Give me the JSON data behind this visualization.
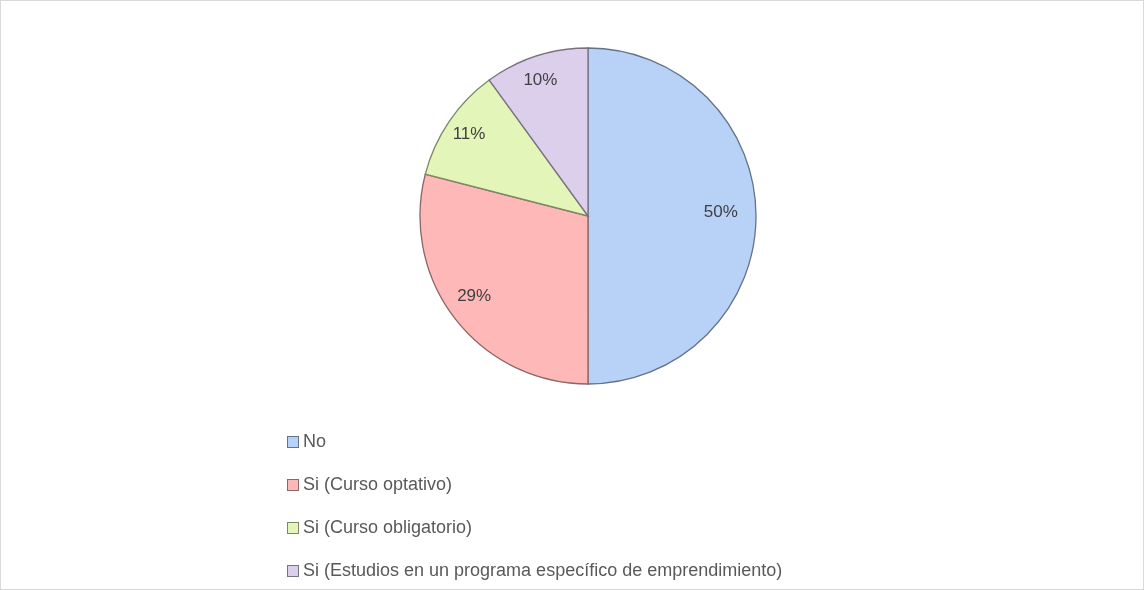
{
  "chart_data": {
    "type": "pie",
    "categories": [
      "No",
      "Si (Curso optativo)",
      "Si (Curso obligatorio)",
      "Si (Estudios en un programa específico de emprendimiento)"
    ],
    "values": [
      50,
      29,
      11,
      10
    ],
    "value_labels": [
      "50%",
      "29%",
      "11%",
      "10%"
    ],
    "colors": [
      "#b7d1f7",
      "#ffb8b8",
      "#e3f5b8",
      "#dccfeb"
    ],
    "legend": "bottom"
  }
}
